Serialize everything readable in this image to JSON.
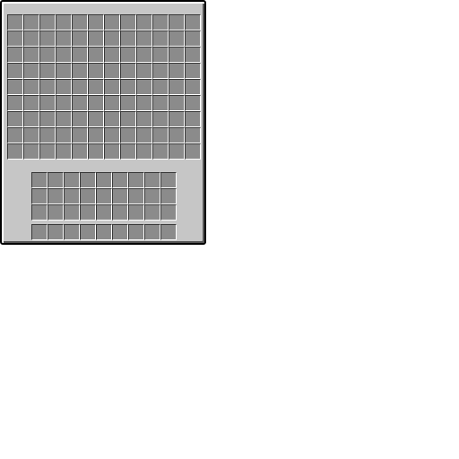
{
  "window": {
    "title": "",
    "colors": {
      "panel": "#c6c6c6",
      "slot": "#8b8b8b",
      "slot_shadow": "#373737",
      "slot_highlight": "#ffffff",
      "outline": "#000000"
    }
  },
  "container": {
    "columns": 12,
    "rows": 9,
    "slot_count": 108
  },
  "player_inventory": {
    "columns": 9,
    "rows": 3,
    "slot_count": 27
  },
  "hotbar": {
    "columns": 9,
    "rows": 1,
    "slot_count": 9
  }
}
